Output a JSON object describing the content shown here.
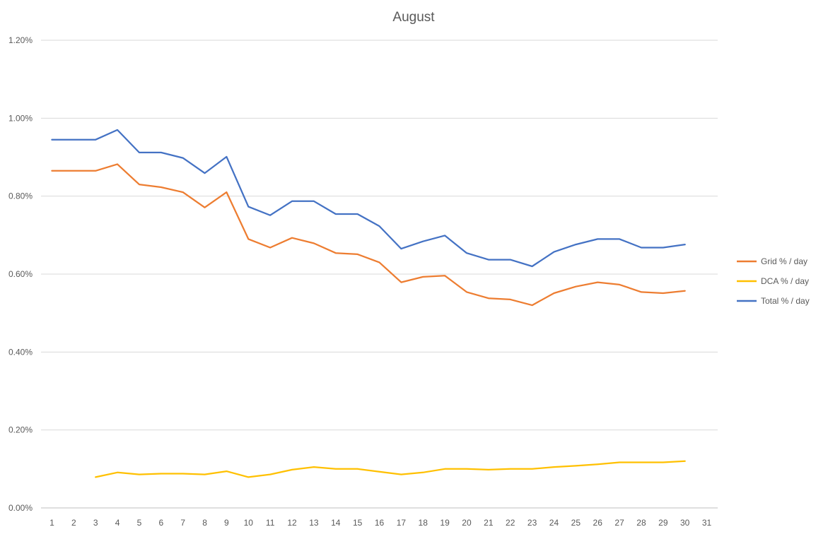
{
  "chart_data": {
    "type": "line",
    "title": "August",
    "categories": [
      "1",
      "2",
      "3",
      "4",
      "5",
      "6",
      "7",
      "8",
      "9",
      "10",
      "11",
      "12",
      "13",
      "14",
      "15",
      "16",
      "17",
      "18",
      "19",
      "20",
      "21",
      "22",
      "23",
      "24",
      "25",
      "26",
      "27",
      "28",
      "29",
      "30",
      "31"
    ],
    "ylim": [
      0,
      1.2
    ],
    "yticks": [
      "0.00%",
      "0.20%",
      "0.40%",
      "0.60%",
      "0.80%",
      "1.00%",
      "1.20%"
    ],
    "ytick_values": [
      0,
      0.2,
      0.4,
      0.6,
      0.8,
      1.0,
      1.2
    ],
    "grid": true,
    "legend_position": "right",
    "series": [
      {
        "name": "Grid % / day",
        "color": "#ED7D31",
        "values": [
          0.865,
          0.865,
          0.865,
          0.882,
          0.83,
          0.823,
          0.81,
          0.771,
          0.81,
          0.69,
          0.668,
          0.693,
          0.679,
          0.654,
          0.651,
          0.63,
          0.579,
          0.593,
          0.596,
          0.554,
          0.538,
          0.535,
          0.52,
          0.551,
          0.568,
          0.579,
          0.573,
          0.554,
          0.551,
          0.557,
          null
        ]
      },
      {
        "name": "DCA % / day",
        "color": "#FFC000",
        "values": [
          null,
          null,
          0.079,
          0.091,
          0.086,
          0.088,
          0.088,
          0.086,
          0.094,
          0.079,
          0.086,
          0.098,
          0.105,
          0.1,
          0.1,
          0.093,
          0.086,
          0.091,
          0.1,
          0.1,
          0.098,
          0.1,
          0.1,
          0.105,
          0.108,
          0.112,
          0.117,
          0.117,
          0.117,
          0.12,
          null
        ]
      },
      {
        "name": "Total % / day",
        "color": "#4472C4",
        "values": [
          0.945,
          0.945,
          0.945,
          0.97,
          0.912,
          0.912,
          0.898,
          0.859,
          0.901,
          0.773,
          0.751,
          0.787,
          0.787,
          0.754,
          0.754,
          0.723,
          0.665,
          0.684,
          0.699,
          0.654,
          0.637,
          0.637,
          0.62,
          0.657,
          0.676,
          0.69,
          0.69,
          0.668,
          0.668,
          0.676,
          null
        ]
      }
    ]
  }
}
